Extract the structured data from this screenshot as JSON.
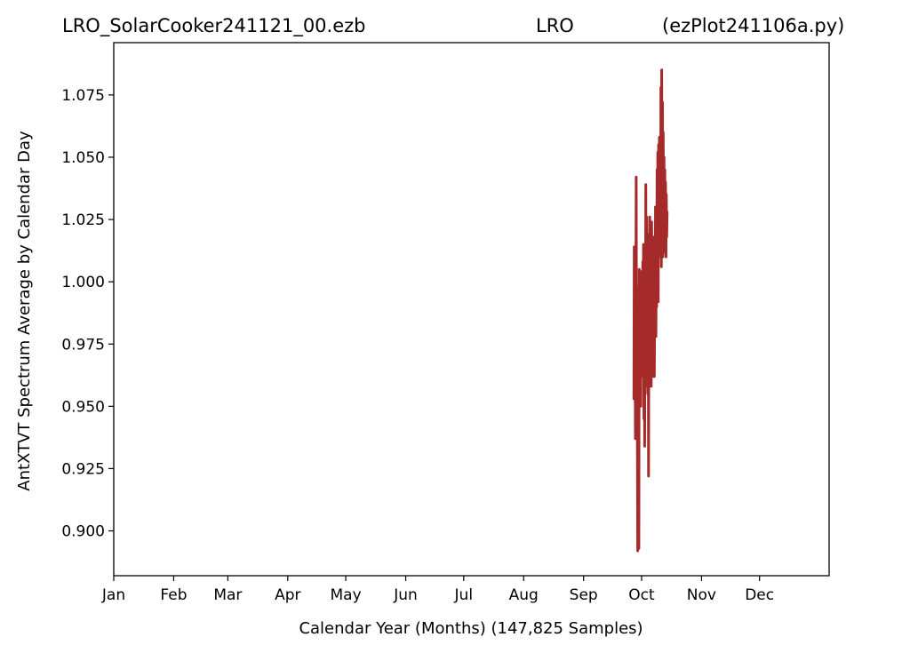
{
  "header": {
    "left": "LRO_SolarCooker241121_00.ezb",
    "center": "LRO",
    "right": "(ezPlot241106a.py)"
  },
  "chart_data": {
    "type": "line",
    "xlabel": "Calendar Year (Months) (147,825 Samples)",
    "ylabel": "AntXTVT Spectrum Average by Calendar Day",
    "x_tick_labels": [
      "Jan",
      "Feb",
      "Mar",
      "Apr",
      "May",
      "Jun",
      "Jul",
      "Aug",
      "Sep",
      "Oct",
      "Nov",
      "Dec"
    ],
    "x_tick_days": [
      1,
      32,
      60,
      91,
      121,
      152,
      182,
      213,
      244,
      274,
      305,
      335
    ],
    "xlim_days": [
      1,
      371
    ],
    "y_ticks": [
      0.9,
      0.925,
      0.95,
      0.975,
      1.0,
      1.025,
      1.05,
      1.075
    ],
    "y_tick_labels": [
      "0.900",
      "0.925",
      "0.950",
      "0.975",
      "1.000",
      "1.025",
      "1.050",
      "1.075"
    ],
    "ylim": [
      0.882,
      1.096
    ],
    "grid": false,
    "line_color": "#a52a2a",
    "series": [
      {
        "x_day": [
          270.0,
          270.2,
          270.4,
          270.6,
          270.8,
          271.0,
          271.2,
          271.4,
          271.6,
          271.8,
          272.0,
          272.2,
          272.4,
          272.6,
          272.8,
          273.0,
          273.2,
          273.4,
          273.6,
          273.8,
          274.0,
          274.2,
          274.4,
          274.6,
          274.8,
          275.0,
          275.2,
          275.4,
          275.6,
          275.8,
          276.0,
          276.2,
          276.4,
          276.6,
          276.8,
          277.0,
          277.2,
          277.4,
          277.6,
          277.8,
          278.0,
          278.2,
          278.4,
          278.6,
          278.8,
          279.0,
          279.2,
          279.4,
          279.6,
          279.8,
          280.0,
          280.2,
          280.4,
          280.6,
          280.8,
          281.0,
          281.2,
          281.4,
          281.6,
          281.8,
          282.0,
          282.2,
          282.4,
          282.6,
          282.8,
          283.0,
          283.2,
          283.4,
          283.6,
          283.8,
          284.0,
          284.2,
          284.4,
          284.6,
          284.8,
          285.0,
          285.2,
          285.4,
          285.6,
          285.8,
          286.0,
          286.2,
          286.4,
          286.6,
          286.8,
          287.0,
          287.2
        ],
        "values": [
          0.953,
          1.014,
          0.96,
          0.99,
          0.937,
          0.978,
          1.042,
          0.955,
          0.985,
          0.94,
          0.892,
          0.998,
          0.945,
          0.893,
          1.005,
          0.975,
          0.96,
          0.995,
          0.95,
          1.004,
          0.965,
          0.99,
          0.972,
          1.008,
          0.962,
          1.015,
          0.945,
          0.99,
          0.934,
          1.0,
          0.958,
          1.039,
          0.965,
          1.026,
          0.978,
          1.005,
          0.955,
          1.019,
          0.922,
          0.99,
          0.965,
          1.026,
          0.97,
          0.962,
          1.0,
          0.958,
          1.024,
          0.975,
          1.003,
          0.968,
          1.009,
          0.962,
          1.018,
          0.962,
          0.995,
          0.98,
          1.03,
          0.978,
          1.01,
          0.99,
          1.045,
          1.002,
          1.052,
          0.992,
          1.055,
          1.01,
          1.058,
          1.02,
          1.048,
          1.012,
          1.078,
          1.006,
          1.085,
          1.015,
          1.072,
          1.01,
          1.06,
          1.02,
          1.05,
          1.012,
          1.045,
          1.02,
          1.04,
          1.01,
          1.035,
          1.018,
          1.028
        ]
      }
    ]
  }
}
